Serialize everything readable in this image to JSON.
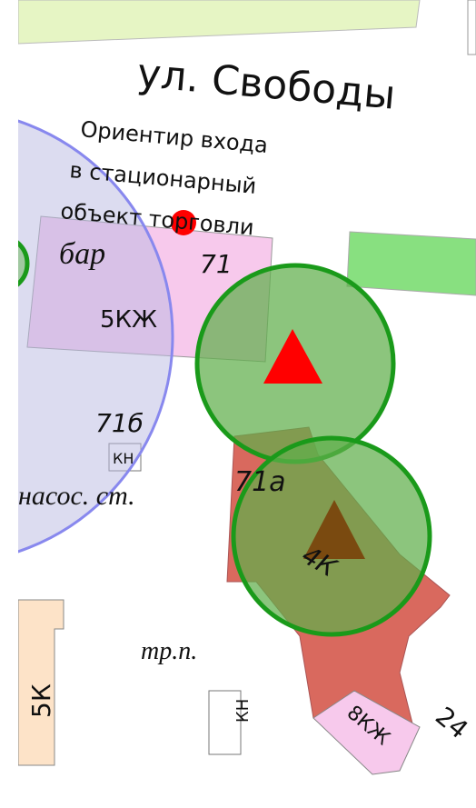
{
  "street": "ул. Свободы",
  "entrance_note": [
    "Ориентир входа",
    "в стационарный",
    "объект торговли"
  ],
  "labels": {
    "bar": "бар",
    "b5kzh": "5КЖ",
    "n71": "71",
    "n71b": "71б",
    "kn1": "КН",
    "pump": "насос. ст.",
    "n71a": "71а",
    "b4k": "4К",
    "trp": "тр.п.",
    "kn2": "КН",
    "b5k": "5К",
    "b8kzh": "8КЖ",
    "n24": "24"
  }
}
